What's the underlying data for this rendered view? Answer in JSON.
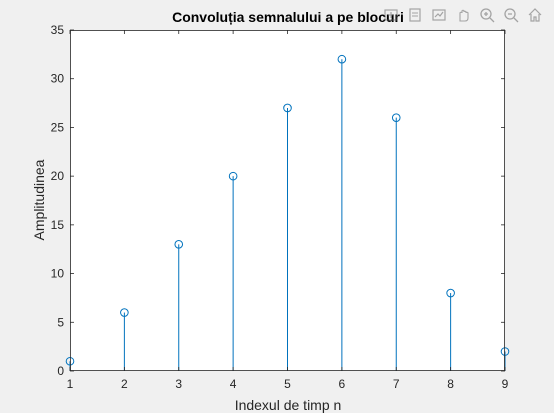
{
  "toolbar": {
    "icons": [
      "export-icon",
      "brush-icon",
      "datatip-icon",
      "pan-icon",
      "zoom-in-icon",
      "zoom-out-icon",
      "home-icon"
    ]
  },
  "colors": {
    "background": "#f0f0f0",
    "axes": "#ffffff",
    "series": "#0072bd",
    "axis_line": "#262626"
  },
  "chart_data": {
    "type": "stem",
    "title": "Convoluția semnalului a pe blocuri",
    "xlabel": "Indexul de timp n",
    "ylabel": "Amplitudinea",
    "x": [
      1,
      2,
      3,
      4,
      5,
      6,
      7,
      8,
      9
    ],
    "y": [
      1,
      6,
      13,
      20,
      27,
      32,
      26,
      8,
      2
    ],
    "xlim": [
      1,
      9
    ],
    "ylim": [
      0,
      35
    ],
    "xticks": [
      "1",
      "2",
      "3",
      "4",
      "5",
      "6",
      "7",
      "8",
      "9"
    ],
    "yticks": [
      "0",
      "5",
      "10",
      "15",
      "20",
      "25",
      "30",
      "35"
    ],
    "grid": false,
    "legend": "none"
  }
}
